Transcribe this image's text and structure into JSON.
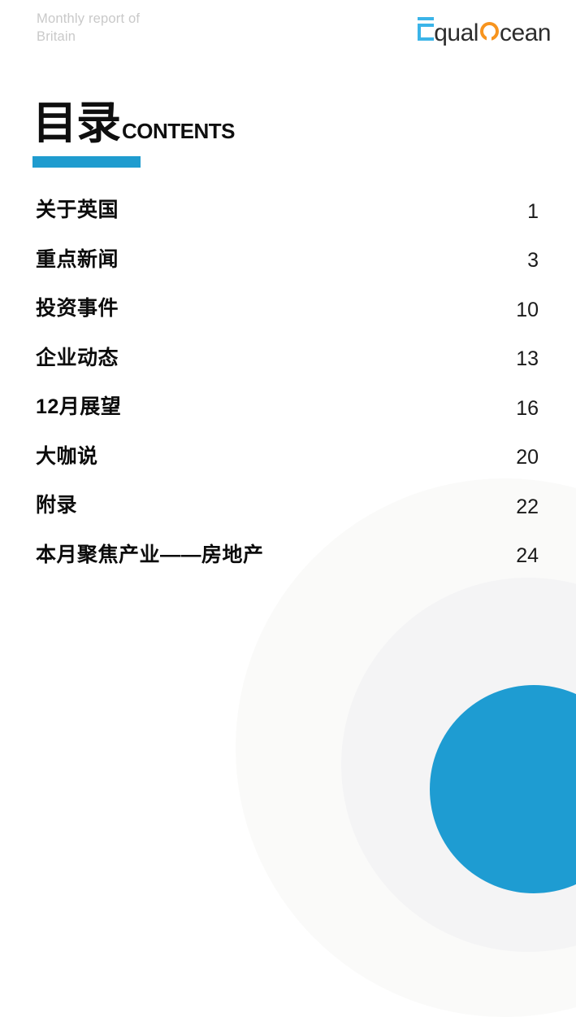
{
  "header": {
    "report_title_line1": "Monthly report of",
    "report_title_line2": "Britain",
    "logo": {
      "text_part1": "qual",
      "text_part2": "cean",
      "e_icon_color": "#3bb4e8",
      "o_icon_color": "#f7941e",
      "text_color": "#2d2d2d"
    }
  },
  "toc": {
    "title_cn": "目录",
    "title_en": "CONTENTS",
    "accent_color": "#1f9ccf",
    "items": [
      {
        "label": "关于英国",
        "page": "1"
      },
      {
        "label": "重点新闻",
        "page": "3"
      },
      {
        "label": "投资事件",
        "page": "10"
      },
      {
        "label": "企业动态",
        "page": "13"
      },
      {
        "label": "12月展望",
        "page": "16"
      },
      {
        "label": "大咖说",
        "page": "20"
      },
      {
        "label": "附录",
        "page": "22"
      },
      {
        "label": "本月聚焦产业——房地产",
        "page": "24"
      }
    ]
  },
  "decor": {
    "circle_outer_color": "#fafaf9",
    "circle_mid_color": "#f4f4f5",
    "circle_blue_color": "#1e9cd2"
  }
}
